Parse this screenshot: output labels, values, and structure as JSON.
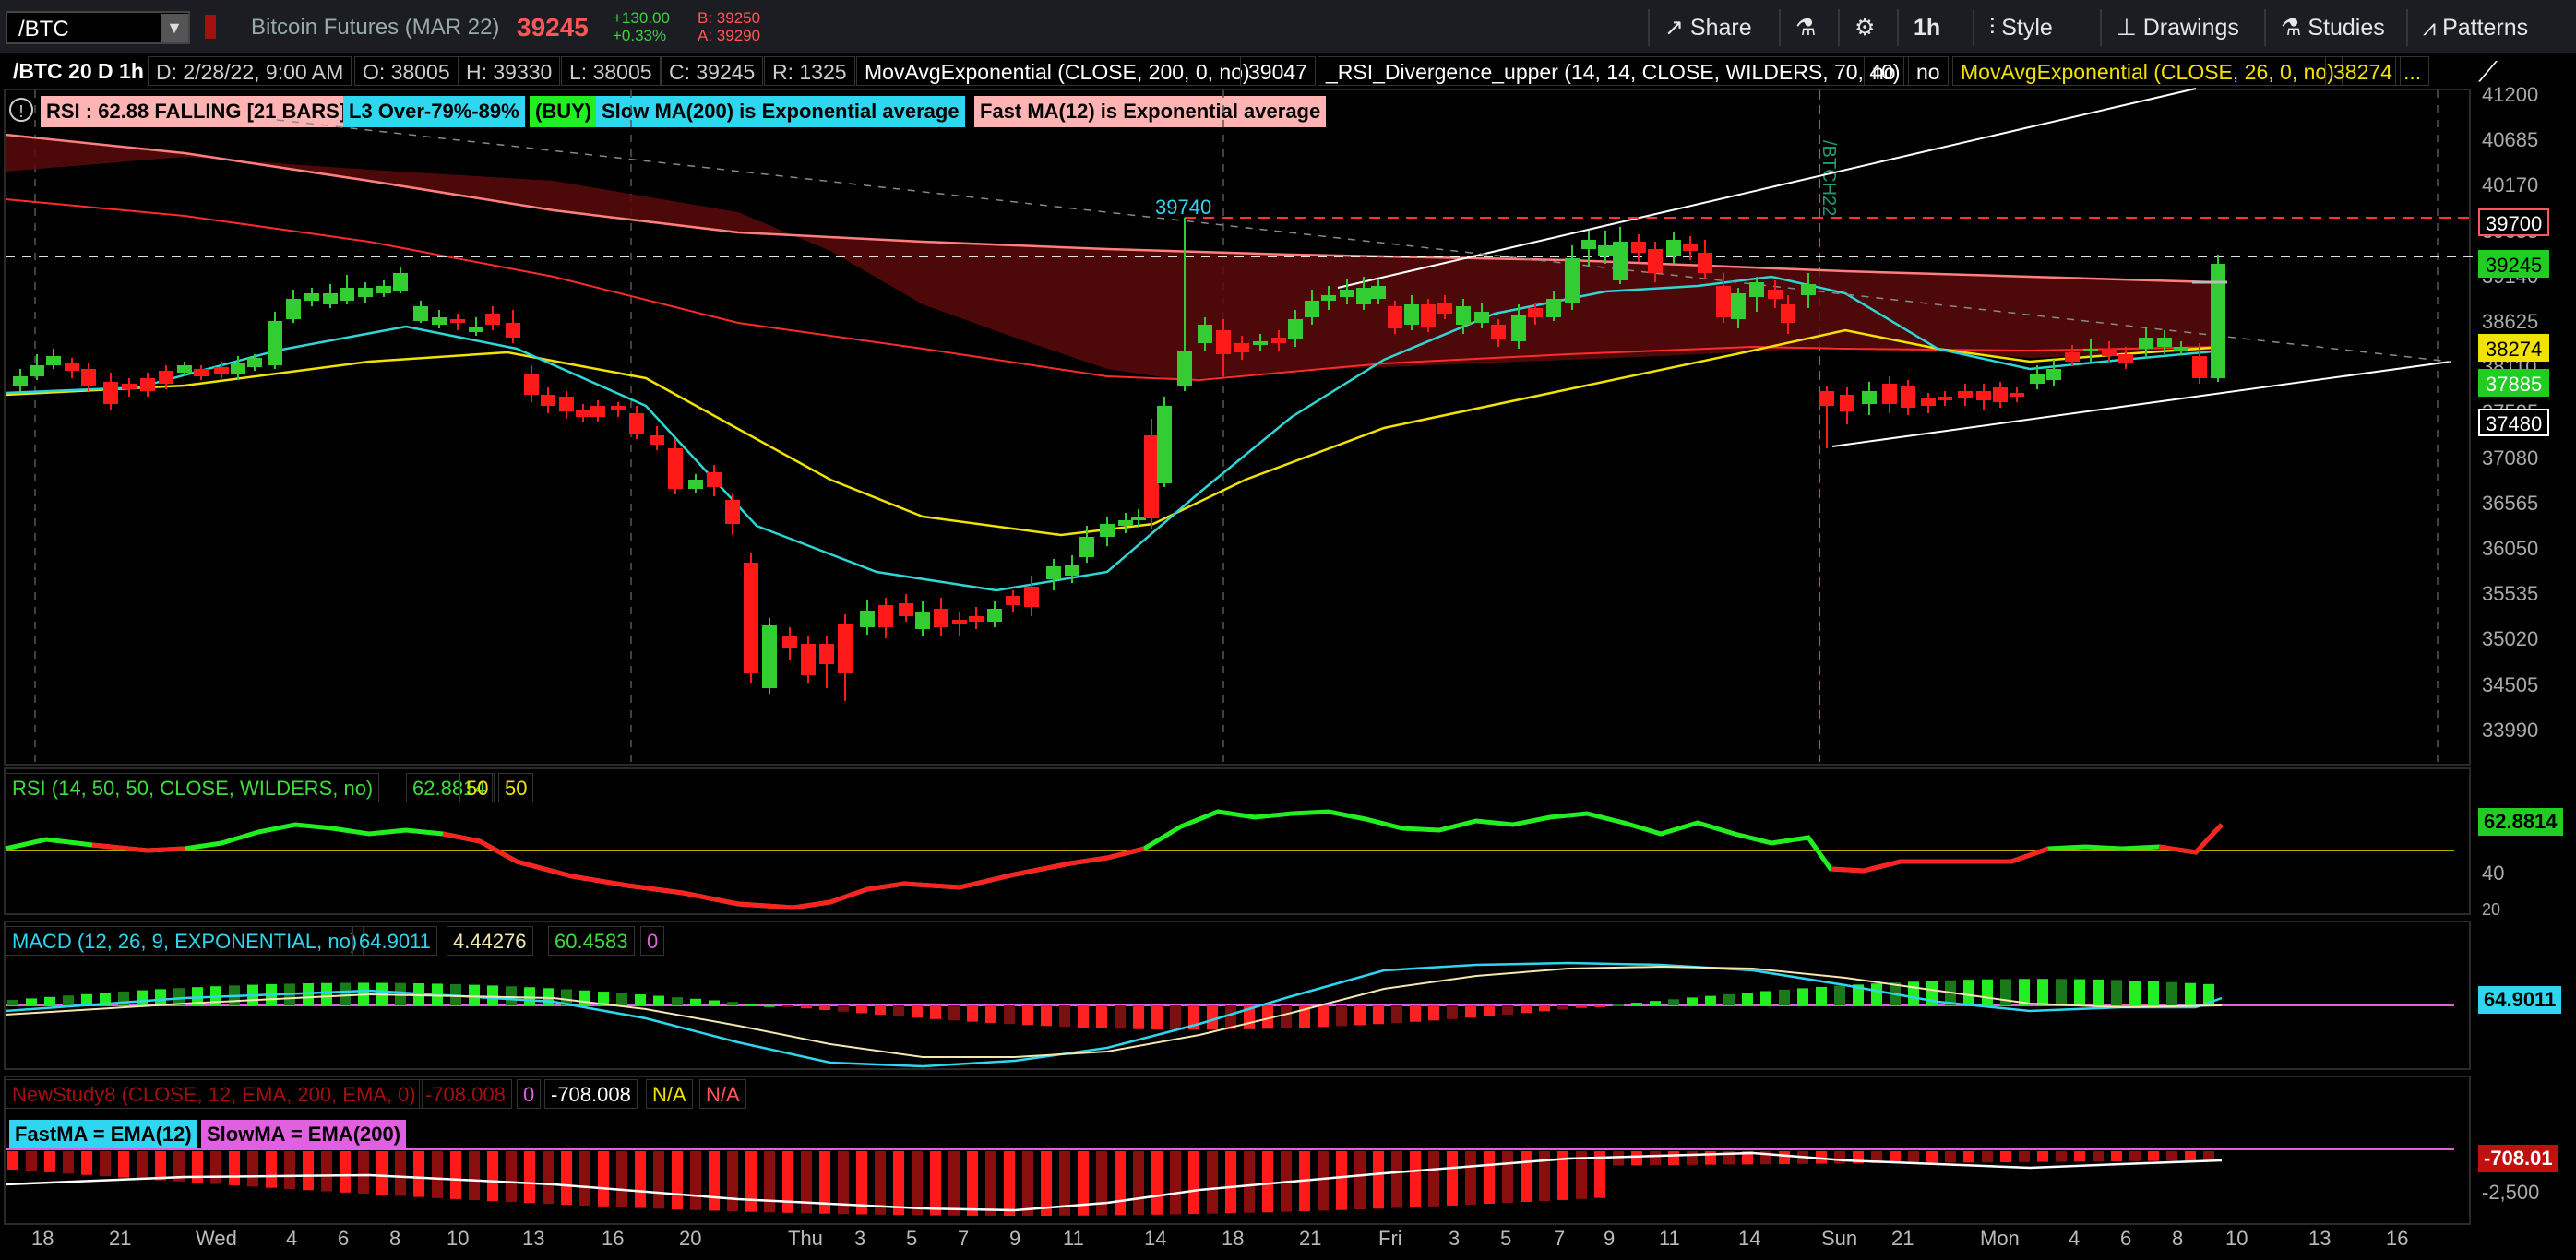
{
  "topbar": {
    "symbol": "/BTC",
    "description": "Bitcoin Futures (MAR 22)",
    "last_price": "39245",
    "change": "+130.00",
    "change_pct": "+0.33%",
    "bid": "B: 39250",
    "ask": "A: 39290",
    "share_label": "Share",
    "timeframe_label": "1h",
    "style_label": "Style",
    "drawings_label": "Drawings",
    "studies_label": "Studies",
    "patterns_label": "Patterns"
  },
  "info_row": {
    "chart_id": "/BTC 20 D 1h",
    "date": "D: 2/28/22, 9:00 AM",
    "open": "O: 38005",
    "high": "H: 39330",
    "low": "L: 38005",
    "close": "C: 39245",
    "range": "R: 1325",
    "ma200_label": "MovAvgExponential (CLOSE, 200, 0, no)",
    "ma200_value": "39047",
    "rsi_div_label": "_RSI_Divergence_upper (14, 14, CLOSE, WILDERS, 70, 40)",
    "no1": "no",
    "no2": "no",
    "ma26_label": "MovAvgExponential (CLOSE, 26, 0, no)",
    "ma26_value": "38274",
    "more": "..."
  },
  "labels": {
    "rsi_falling": "RSI : 62.88 FALLING [21 BARS]",
    "l3": "L3 Over-79%-89%",
    "buy": "(BUY)",
    "slow_ma": "Slow MA(200) is Exponential average",
    "fast_ma": "Fast MA(12) is Exponential average",
    "high_marker": "39740",
    "expiry": "/BTCH22"
  },
  "price_axis": [
    "41200",
    "40685",
    "40170",
    "39655",
    "39140",
    "38625",
    "38110",
    "37595",
    "37080",
    "36565",
    "36050",
    "35535",
    "35020",
    "34505",
    "33990"
  ],
  "price_tags": [
    {
      "text": "39700",
      "bg": "#000000",
      "fg": "#ffffff",
      "border": "#ff5757"
    },
    {
      "text": "39245",
      "bg": "#22cc22",
      "fg": "#000000",
      "border": "#22cc22"
    },
    {
      "text": "38274",
      "bg": "#f2e200",
      "fg": "#000000",
      "border": "#f2e200"
    },
    {
      "text": "37885",
      "bg": "#22cc22",
      "fg": "#ffffff",
      "border": "#22cc22"
    },
    {
      "text": "37480",
      "bg": "#000000",
      "fg": "#ffffff",
      "border": "#ffffff"
    }
  ],
  "rsi_pane": {
    "header": "RSI (14, 50, 50, CLOSE, WILDERS, no)",
    "value": "62.8814",
    "ob": "50",
    "os": "50",
    "tag": "62.8814",
    "axis": [
      "60",
      "40",
      "20"
    ]
  },
  "macd_pane": {
    "header": "MACD (12, 26, 9, EXPONENTIAL, no)",
    "value": "64.9011",
    "avg": "4.44276",
    "diff": "60.4583",
    "zero": "0",
    "tag": "64.9011",
    "axis": [
      "0"
    ]
  },
  "study_pane": {
    "header": "NewStudy8 (CLOSE, 12, EMA, 200, EMA, 0)",
    "v1": "-708.008",
    "v2": "0",
    "v3": "-708.008",
    "v4": "N/A",
    "v5": "N/A",
    "fast": "FastMA = EMA(12)",
    "slow": "SlowMA = EMA(200)",
    "tag": "-708.01",
    "axis": [
      "0",
      "-2,500"
    ]
  },
  "time_axis": [
    "18",
    "21",
    "Wed",
    "4",
    "6",
    "8",
    "10",
    "13",
    "16",
    "20",
    "Thu",
    "3",
    "5",
    "7",
    "9",
    "11",
    "14",
    "18",
    "21",
    "Fri",
    "3",
    "5",
    "7",
    "9",
    "11",
    "14",
    "Sun",
    "21",
    "Mon",
    "4",
    "6",
    "8",
    "10",
    "13",
    "16"
  ],
  "colors": {
    "up": "#33cc33",
    "down": "#ff1a1a",
    "ema200": "#ff7f7f",
    "ema12": "#2fd6d6",
    "ema26": "#f2e200",
    "cloud": "#5a0a0a"
  }
}
